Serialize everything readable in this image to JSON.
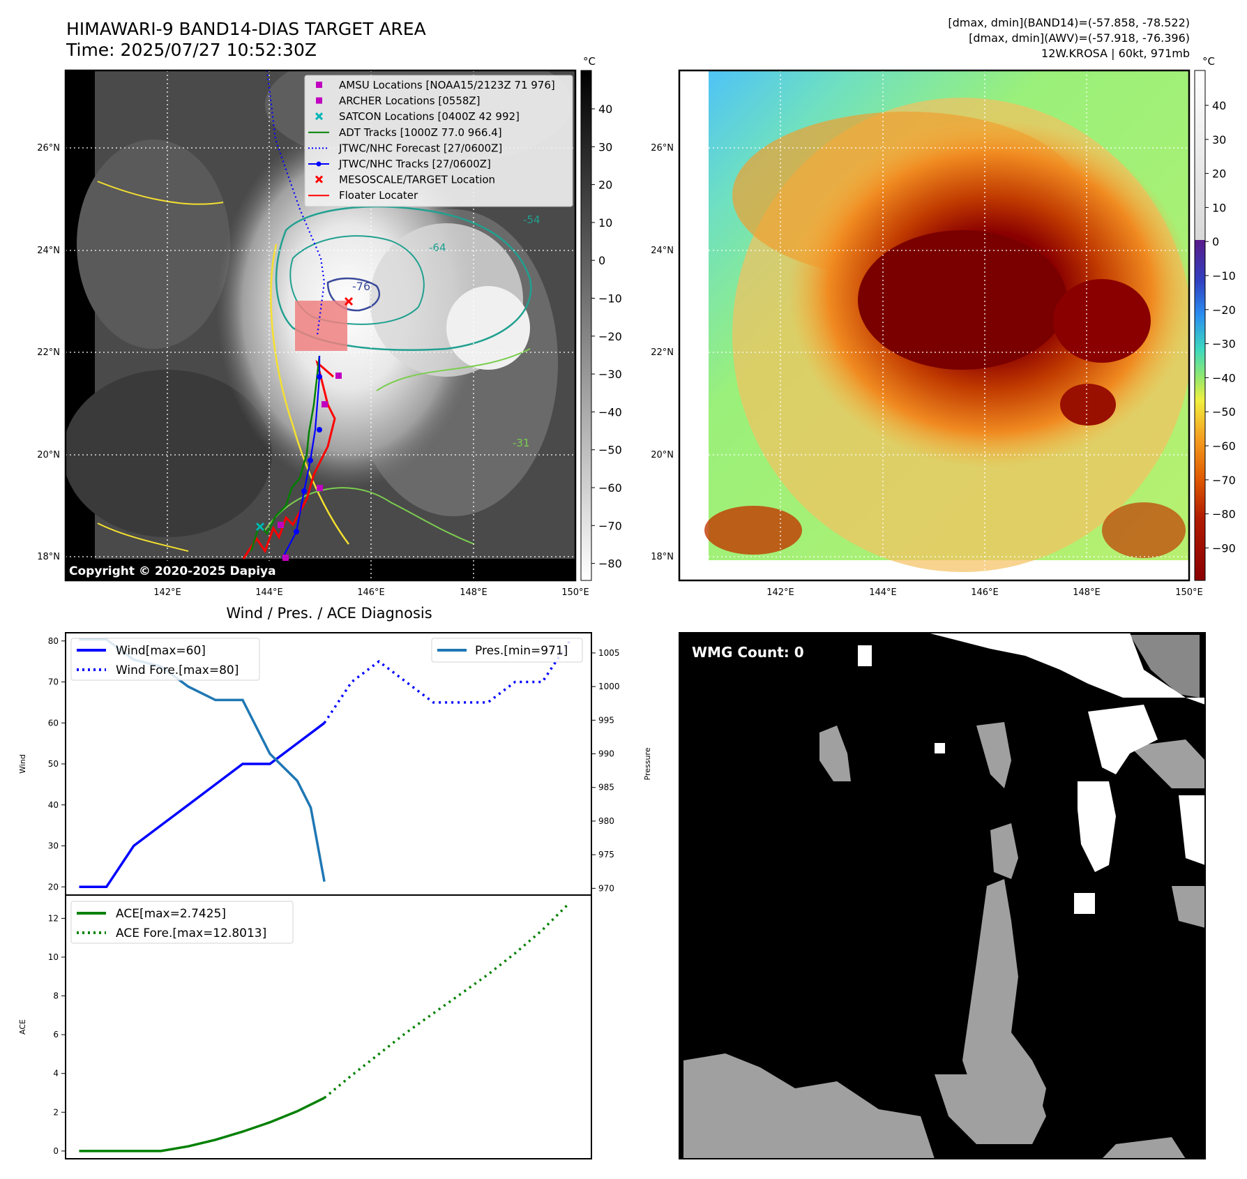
{
  "header": {
    "title": "HIMAWARI-9 BAND14-DIAS TARGET AREA",
    "time": "Time: 2025/07/27 10:52:30Z",
    "stats_band14": "[dmax, dmin](BAND14)=(-57.858, -78.522)",
    "stats_awv": "[dmax, dmin](AWV)=(-57.918, -76.396)",
    "storm": "12W.KROSA | 60kt, 971mb"
  },
  "ir_map": {
    "x_ticks": [
      "142°E",
      "144°E",
      "146°E",
      "148°E",
      "150°E"
    ],
    "y_ticks": [
      "26°N",
      "24°N",
      "22°N",
      "20°N",
      "18°N"
    ],
    "colorbar_unit": "°C",
    "colorbar_ticks": [
      "40",
      "30",
      "20",
      "10",
      "0",
      "−10",
      "−20",
      "−30",
      "−40",
      "−50",
      "−60",
      "−70",
      "−80"
    ],
    "copyright": "Copyright © 2020-2025 Dapiya",
    "contour_labels": [
      "-76",
      "-64",
      "-54",
      "-31"
    ],
    "legend": [
      {
        "label": "AMSU Locations [NOAA15/2123Z 71 976]",
        "color": "#c000c0",
        "marker": "square"
      },
      {
        "label": "ARCHER Locations [0558Z]",
        "color": "#c000c0",
        "marker": "square"
      },
      {
        "label": "SATCON Locations [0400Z 42 992]",
        "color": "#00b5b5",
        "marker": "x"
      },
      {
        "label": "ADT Tracks [1000Z 77.0 966.4]",
        "color": "#008000",
        "marker": "line"
      },
      {
        "label": "JTWC/NHC Forecast [27/0600Z]",
        "color": "#0000ff",
        "marker": "dotted"
      },
      {
        "label": "JTWC/NHC Tracks [27/0600Z]",
        "color": "#0000ff",
        "marker": "line-dot"
      },
      {
        "label": "MESOSCALE/TARGET Location",
        "color": "#ff0000",
        "marker": "x"
      },
      {
        "label": "Floater Locater",
        "color": "#ff0000",
        "marker": "line"
      }
    ]
  },
  "awv_map": {
    "x_ticks": [
      "142°E",
      "144°E",
      "146°E",
      "148°E",
      "150°E"
    ],
    "y_ticks": [
      "26°N",
      "24°N",
      "22°N",
      "20°N",
      "18°N"
    ],
    "colorbar_unit": "°C",
    "colorbar_ticks": [
      "40",
      "30",
      "20",
      "10",
      "0",
      "−10",
      "−20",
      "−30",
      "−40",
      "−50",
      "−60",
      "−70",
      "−80",
      "−90"
    ]
  },
  "diagnosis": {
    "title": "Wind / Pres. / ACE Diagnosis",
    "wind_axis_label": "Wind",
    "pressure_axis_label": "Pressure",
    "ace_axis_label": "ACE",
    "wind_ticks": [
      "80",
      "70",
      "60",
      "50",
      "40",
      "30",
      "20"
    ],
    "pressure_ticks": [
      "1005",
      "1000",
      "995",
      "990",
      "985",
      "980",
      "975",
      "970"
    ],
    "ace_ticks": [
      "12",
      "10",
      "8",
      "6",
      "4",
      "2",
      "0"
    ],
    "legend_wind": "Wind[max=60]",
    "legend_wind_fore": "Wind Fore.[max=80]",
    "legend_pres": "Pres.[min=971]",
    "legend_ace": "ACE[max=2.7425]",
    "legend_ace_fore": "ACE Fore.[max=12.8013]"
  },
  "wmg": {
    "label": "WMG Count: 0"
  },
  "chart_data": [
    {
      "type": "line",
      "name": "Wind / Pres.",
      "title": "Wind / Pres. / ACE Diagnosis",
      "ylabel": "Wind",
      "y2label": "Pressure",
      "ylim": [
        18,
        82
      ],
      "y2lim": [
        969,
        1008
      ],
      "x": [
        0,
        1,
        2,
        3,
        4,
        5,
        6,
        7,
        8,
        9,
        10,
        11,
        12,
        13,
        14,
        15,
        16,
        17,
        18
      ],
      "series": [
        {
          "name": "Wind[max=60]",
          "axis": "left",
          "color": "#0000ff",
          "style": "solid",
          "x": [
            0,
            1,
            2,
            3,
            4,
            5,
            6,
            7,
            8,
            9
          ],
          "values": [
            20,
            20,
            30,
            35,
            40,
            45,
            50,
            50,
            55,
            60
          ]
        },
        {
          "name": "Wind Fore.[max=80]",
          "axis": "left",
          "color": "#0000ff",
          "style": "dotted",
          "x": [
            9,
            10,
            11,
            12,
            13,
            14,
            15,
            16,
            17,
            18
          ],
          "values": [
            60,
            70,
            75,
            70,
            65,
            65,
            65,
            70,
            70,
            80
          ]
        },
        {
          "name": "Pres.[min=971]",
          "axis": "right",
          "color": "#1f77b4",
          "style": "solid",
          "x": [
            0,
            1,
            2,
            3,
            4,
            5,
            6,
            7,
            8,
            8.5,
            9
          ],
          "values": [
            1007,
            1007,
            1004,
            1003,
            1000,
            998,
            998,
            990,
            986,
            982,
            971
          ]
        }
      ]
    },
    {
      "type": "line",
      "name": "ACE",
      "ylabel": "ACE",
      "ylim": [
        -0.4,
        13.2
      ],
      "series": [
        {
          "name": "ACE[max=2.7425]",
          "color": "#008000",
          "style": "solid",
          "x": [
            0,
            1,
            2,
            3,
            4,
            5,
            6,
            7,
            8,
            9
          ],
          "values": [
            0,
            0,
            0,
            0,
            0.24,
            0.58,
            1.0,
            1.48,
            2.05,
            2.7425
          ]
        },
        {
          "name": "ACE Fore.[max=12.8013]",
          "color": "#008000",
          "style": "dotted",
          "x": [
            9,
            10,
            11,
            12,
            13,
            14,
            15,
            16,
            17,
            18
          ],
          "values": [
            2.7425,
            3.9,
            5.0,
            6.1,
            7.1,
            8.1,
            9.1,
            10.2,
            11.4,
            12.8013
          ]
        }
      ]
    }
  ]
}
